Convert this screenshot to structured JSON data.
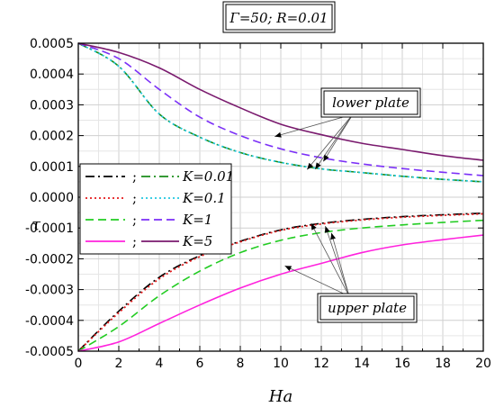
{
  "chart_data": {
    "type": "line",
    "title": "Γ=50; R=0.01",
    "xlabel": "Ha",
    "ylabel": "τ",
    "xlim": [
      0,
      20
    ],
    "ylim": [
      -0.0005,
      0.0005
    ],
    "xticks": [
      "0",
      "2",
      "4",
      "6",
      "8",
      "10",
      "12",
      "14",
      "16",
      "18",
      "20"
    ],
    "yticks": [
      "0.0005",
      "0.0004",
      "0.0003",
      "0.0002",
      "0.0001",
      "0.0000",
      "-0.0001",
      "-0.0002",
      "-0.0003",
      "-0.0004",
      "-0.0005"
    ],
    "grid": true,
    "legend_position": "left",
    "legend_rows": [
      {
        "label": "K=0.01",
        "upper_color": "#000000",
        "upper_dash": "dashdot",
        "lower_color": "#1a8c1a",
        "lower_dash": "dashdot"
      },
      {
        "label": "K=0.1",
        "upper_color": "#e41a1c",
        "upper_dash": "dot",
        "lower_color": "#22c8e0",
        "lower_dash": "dot"
      },
      {
        "label": "K=1",
        "upper_color": "#22cc22",
        "upper_dash": "dash",
        "lower_color": "#7b2ff7",
        "lower_dash": "dash"
      },
      {
        "label": "K=5",
        "upper_color": "#ff22dd",
        "upper_dash": "solid",
        "lower_color": "#7a1a6e",
        "lower_dash": "solid"
      }
    ],
    "x": [
      0,
      2,
      4,
      6,
      8,
      10,
      12,
      14,
      16,
      18,
      20
    ],
    "series": [
      {
        "group": "upper",
        "K": "K=0.01",
        "color": "#000000",
        "dash": "dashdot",
        "values": [
          -0.0005,
          -0.00037,
          -0.00026,
          -0.00019,
          -0.000143,
          -0.000106,
          -8.5e-05,
          -7.2e-05,
          -6.3e-05,
          -5.7e-05,
          -5.2e-05
        ]
      },
      {
        "group": "upper",
        "K": "K=0.1",
        "color": "#e41a1c",
        "dash": "dot",
        "values": [
          -0.0005,
          -0.000375,
          -0.000265,
          -0.000193,
          -0.000145,
          -0.000108,
          -8.7e-05,
          -7.4e-05,
          -6.5e-05,
          -5.9e-05,
          -5.4e-05
        ]
      },
      {
        "group": "upper",
        "K": "K=1",
        "color": "#22cc22",
        "dash": "dash",
        "values": [
          -0.0005,
          -0.00042,
          -0.00032,
          -0.00024,
          -0.00018,
          -0.00014,
          -0.000115,
          -0.0001,
          -9e-05,
          -8.2e-05,
          -7.5e-05
        ]
      },
      {
        "group": "upper",
        "K": "K=5",
        "color": "#ff22dd",
        "dash": "solid",
        "values": [
          -0.0005,
          -0.00047,
          -0.00041,
          -0.00035,
          -0.000295,
          -0.00025,
          -0.000215,
          -0.00018,
          -0.000155,
          -0.000138,
          -0.000123
        ]
      },
      {
        "group": "lower",
        "K": "K=0.01",
        "color": "#1a8c1a",
        "dash": "dashdot",
        "values": [
          0.0005,
          0.000425,
          0.00027,
          0.000195,
          0.000145,
          0.000113,
          9.2e-05,
          8e-05,
          6.8e-05,
          5.8e-05,
          5e-05
        ]
      },
      {
        "group": "lower",
        "K": "K=0.1",
        "color": "#22c8e0",
        "dash": "dot",
        "values": [
          0.0005,
          0.000425,
          0.00027,
          0.000195,
          0.000145,
          0.000113,
          9.2e-05,
          8e-05,
          6.8e-05,
          5.8e-05,
          5e-05
        ]
      },
      {
        "group": "lower",
        "K": "K=1",
        "color": "#7b2ff7",
        "dash": "dash",
        "values": [
          0.0005,
          0.00045,
          0.00035,
          0.00026,
          0.0002,
          0.000157,
          0.000128,
          0.000108,
          9.3e-05,
          8.1e-05,
          7e-05
        ]
      },
      {
        "group": "lower",
        "K": "K=5",
        "color": "#7a1a6e",
        "dash": "solid",
        "values": [
          0.0005,
          0.00047,
          0.00042,
          0.00035,
          0.00029,
          0.000237,
          0.000203,
          0.000175,
          0.000155,
          0.000135,
          0.00012
        ]
      }
    ],
    "annotations": [
      {
        "text": "lower plate",
        "arrow_targets": [
          [
            11.3,
            9e-05
          ],
          [
            11.7,
            9.1e-05
          ],
          [
            12.1,
            0.000116
          ],
          [
            9.7,
            0.000197
          ]
        ]
      },
      {
        "text": "upper plate",
        "arrow_targets": [
          [
            11.5,
            -8.5e-05
          ],
          [
            12.2,
            -9.4e-05
          ],
          [
            12.5,
            -0.000116
          ],
          [
            10.2,
            -0.000223
          ]
        ]
      }
    ]
  }
}
